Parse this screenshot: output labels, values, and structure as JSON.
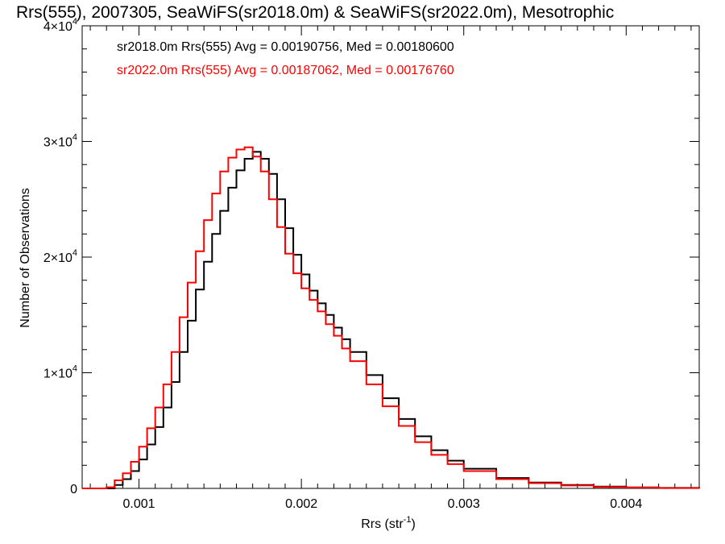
{
  "chart_data": {
    "type": "line",
    "title": "Rrs(555), 2007305, SeaWiFS(sr2018.0m) & SeaWiFS(sr2022.0m), Mesotrophic",
    "xlabel": "Rrs (str",
    "xlabel_sup": "-1",
    "xlabel_close": ")",
    "ylabel": "Number of Observations",
    "xlim": [
      0.00065,
      0.00445
    ],
    "ylim": [
      0,
      40000
    ],
    "x_ticks": [
      {
        "value": 0.001,
        "label": "0.001"
      },
      {
        "value": 0.002,
        "label": "0.002"
      },
      {
        "value": 0.003,
        "label": "0.003"
      },
      {
        "value": 0.004,
        "label": "0.004"
      }
    ],
    "y_ticks": [
      {
        "value": 0,
        "mant": "0",
        "exp": ""
      },
      {
        "value": 10000,
        "mant": "1×10",
        "exp": "4"
      },
      {
        "value": 20000,
        "mant": "2×10",
        "exp": "4"
      },
      {
        "value": 30000,
        "mant": "3×10",
        "exp": "4"
      },
      {
        "value": 40000,
        "mant": "4×10",
        "exp": "4"
      }
    ],
    "legend_placement": "top-left",
    "grid": false,
    "series": [
      {
        "name": "sr2018.0m Rrs(555) Avg = 0.00190756, Med = 0.00180600",
        "color": "#000000",
        "x": [
          0.00065,
          0.0008,
          0.00085,
          0.0009,
          0.00095,
          0.001,
          0.00105,
          0.0011,
          0.00115,
          0.0012,
          0.00125,
          0.0013,
          0.00135,
          0.0014,
          0.00145,
          0.0015,
          0.00155,
          0.0016,
          0.00165,
          0.0017,
          0.00175,
          0.0018,
          0.00185,
          0.0019,
          0.00195,
          0.002,
          0.00205,
          0.0021,
          0.00215,
          0.0022,
          0.00225,
          0.0023,
          0.0024,
          0.0025,
          0.0026,
          0.0027,
          0.0028,
          0.0029,
          0.003,
          0.0032,
          0.0034,
          0.0036,
          0.0038,
          0.004,
          0.0042,
          0.00445
        ],
        "y": [
          0,
          0,
          300,
          800,
          1500,
          2500,
          3800,
          5300,
          7000,
          9200,
          11800,
          14500,
          17200,
          19600,
          22000,
          24000,
          26000,
          27500,
          28500,
          29100,
          28500,
          27200,
          25000,
          22500,
          20200,
          18500,
          17100,
          16000,
          15000,
          13900,
          12900,
          11800,
          9800,
          7800,
          6000,
          4500,
          3300,
          2400,
          1700,
          900,
          500,
          300,
          150,
          90,
          40,
          10
        ]
      },
      {
        "name": "sr2022.0m Rrs(555) Avg = 0.00187062, Med = 0.00176760",
        "color": "#ff0000",
        "x": [
          0.00065,
          0.0008,
          0.00085,
          0.0009,
          0.00095,
          0.001,
          0.00105,
          0.0011,
          0.00115,
          0.0012,
          0.00125,
          0.0013,
          0.00135,
          0.0014,
          0.00145,
          0.0015,
          0.00155,
          0.0016,
          0.00165,
          0.0017,
          0.00175,
          0.0018,
          0.00185,
          0.0019,
          0.00195,
          0.002,
          0.00205,
          0.0021,
          0.00215,
          0.0022,
          0.00225,
          0.0023,
          0.0024,
          0.0025,
          0.0026,
          0.0027,
          0.0028,
          0.0029,
          0.003,
          0.0032,
          0.0034,
          0.0036,
          0.0038,
          0.004,
          0.0042,
          0.00445
        ],
        "y": [
          0,
          100,
          700,
          1300,
          2300,
          3600,
          5200,
          7000,
          9000,
          11800,
          14800,
          17800,
          20500,
          23200,
          25500,
          27400,
          28600,
          29300,
          29500,
          28700,
          27400,
          25000,
          22600,
          20300,
          18600,
          17300,
          16300,
          15300,
          14200,
          13200,
          12100,
          11000,
          9000,
          7100,
          5400,
          4000,
          2900,
          2100,
          1500,
          800,
          450,
          250,
          120,
          70,
          30,
          10
        ]
      }
    ]
  }
}
